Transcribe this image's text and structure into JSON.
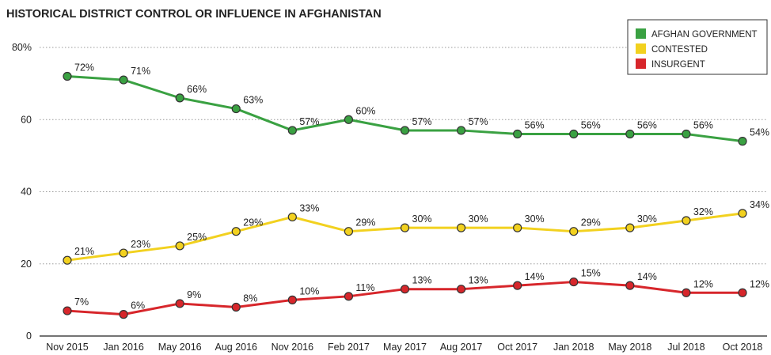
{
  "chart_data": {
    "type": "line",
    "title": "HISTORICAL DISTRICT CONTROL OR INFLUENCE IN AFGHANISTAN",
    "categories": [
      "Nov 2015",
      "Jan 2016",
      "May 2016",
      "Aug 2016",
      "Nov 2016",
      "Feb 2017",
      "May 2017",
      "Aug 2017",
      "Oct 2017",
      "Jan 2018",
      "May 2018",
      "Jul 2018",
      "Oct 2018"
    ],
    "ylim": [
      0,
      80
    ],
    "yticks": [
      0,
      20,
      40,
      60,
      80
    ],
    "ytick_labels": [
      "0",
      "20",
      "40",
      "60",
      "80%"
    ],
    "grid": "horizontal dotted",
    "legend_position": "top-right",
    "series": [
      {
        "name": "AFGHAN GOVERNMENT",
        "color": "#3aa142",
        "values": [
          72,
          71,
          66,
          63,
          57,
          60,
          57,
          57,
          56,
          56,
          56,
          56,
          54
        ],
        "labels": [
          "72%",
          "71%",
          "66%",
          "63%",
          "57%",
          "60%",
          "57%",
          "57%",
          "56%",
          "56%",
          "56%",
          "56%",
          "54%"
        ]
      },
      {
        "name": "CONTESTED",
        "color": "#f2d11f",
        "values": [
          21,
          23,
          25,
          29,
          33,
          29,
          30,
          30,
          30,
          29,
          30,
          32,
          34
        ],
        "labels": [
          "21%",
          "23%",
          "25%",
          "29%",
          "33%",
          "29%",
          "30%",
          "30%",
          "30%",
          "29%",
          "30%",
          "32%",
          "34%"
        ]
      },
      {
        "name": "INSURGENT",
        "color": "#d7262b",
        "values": [
          7,
          6,
          9,
          8,
          10,
          11,
          13,
          13,
          14,
          15,
          14,
          12,
          12
        ],
        "labels": [
          "7%",
          "6%",
          "9%",
          "8%",
          "10%",
          "11%",
          "13%",
          "13%",
          "14%",
          "15%",
          "14%",
          "12%",
          "12%"
        ]
      }
    ]
  }
}
